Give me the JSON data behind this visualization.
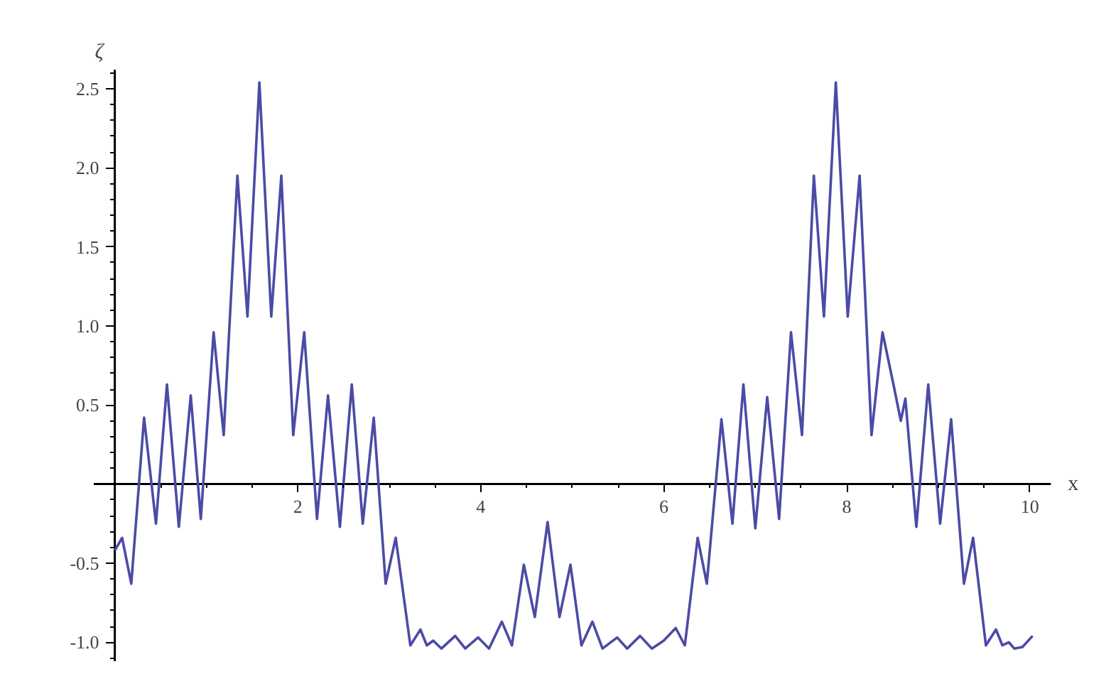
{
  "chart_data": {
    "type": "line",
    "xlabel": "x",
    "ylabel": "ζ",
    "x": [
      0.0,
      0.08,
      0.18,
      0.32,
      0.45,
      0.57,
      0.7,
      0.83,
      0.94,
      1.08,
      1.19,
      1.34,
      1.45,
      1.58,
      1.71,
      1.82,
      1.95,
      2.07,
      2.21,
      2.33,
      2.46,
      2.59,
      2.71,
      2.83,
      2.96,
      3.07,
      3.23,
      3.34,
      3.41,
      3.48,
      3.57,
      3.72,
      3.83,
      3.97,
      4.09,
      4.23,
      4.34,
      4.47,
      4.59,
      4.73,
      4.86,
      4.98,
      5.1,
      5.22,
      5.33,
      5.49,
      5.6,
      5.74,
      5.87,
      6.0,
      6.13,
      6.23,
      6.37,
      6.47,
      6.63,
      6.75,
      6.87,
      7.0,
      7.13,
      7.26,
      7.39,
      7.51,
      7.64,
      7.75,
      7.88,
      8.01,
      8.14,
      8.27,
      8.39,
      8.51,
      8.59,
      8.64,
      8.76,
      8.89,
      9.02,
      9.14,
      9.28,
      9.38,
      9.52,
      9.63,
      9.7,
      9.77,
      9.83,
      9.92,
      10.03
    ],
    "series": [
      {
        "color": "#4b4ba6",
        "values": [
          -0.42,
          -0.34,
          -0.63,
          0.42,
          -0.25,
          0.63,
          -0.27,
          0.56,
          -0.22,
          0.96,
          0.31,
          1.95,
          1.06,
          2.54,
          1.06,
          1.95,
          0.31,
          0.96,
          -0.22,
          0.56,
          -0.27,
          0.63,
          -0.25,
          0.42,
          -0.63,
          -0.34,
          -1.02,
          -0.92,
          -1.02,
          -0.99,
          -1.04,
          -0.96,
          -1.04,
          -0.97,
          -1.04,
          -0.87,
          -1.02,
          -0.51,
          -0.84,
          -0.24,
          -0.84,
          -0.51,
          -1.02,
          -0.87,
          -1.04,
          -0.97,
          -1.04,
          -0.96,
          -1.04,
          -0.99,
          -0.91,
          -1.02,
          -0.34,
          -0.63,
          0.41,
          -0.25,
          0.63,
          -0.28,
          0.55,
          -0.22,
          0.96,
          0.31,
          1.95,
          1.06,
          2.54,
          1.06,
          1.95,
          0.31,
          0.96,
          0.63,
          0.4,
          0.54,
          -0.27,
          0.63,
          -0.25,
          0.41,
          -0.63,
          -0.34,
          -1.02,
          -0.92,
          -1.02,
          -1.0,
          -1.04,
          -1.03,
          -0.96
        ]
      }
    ],
    "xlim": [
      -0.23,
      10.23
    ],
    "ylim": [
      -1.12,
      2.62
    ],
    "xticks": [
      {
        "value": 0.5,
        "label": null
      },
      {
        "value": 1,
        "label": null
      },
      {
        "value": 1.5,
        "label": null
      },
      2,
      {
        "value": 2.5,
        "label": null
      },
      {
        "value": 3,
        "label": null
      },
      {
        "value": 3.5,
        "label": null
      },
      4,
      {
        "value": 4.5,
        "label": null
      },
      {
        "value": 5,
        "label": null
      },
      {
        "value": 5.5,
        "label": null
      },
      6,
      {
        "value": 6.5,
        "label": null
      },
      {
        "value": 7,
        "label": null
      },
      {
        "value": 7.5,
        "label": null
      },
      8,
      {
        "value": 8.5,
        "label": null
      },
      {
        "value": 9,
        "label": null
      },
      {
        "value": 9.5,
        "label": null
      },
      10
    ],
    "yticks": [
      {
        "value": -1.0,
        "label": "-1.0"
      },
      {
        "value": -0.5,
        "label": "-0.5"
      },
      {
        "value": 0.5,
        "label": "0.5"
      },
      {
        "value": 1.0,
        "label": "1.0"
      },
      {
        "value": 1.5,
        "label": "1.5"
      },
      {
        "value": 2.0,
        "label": "2.0"
      },
      {
        "value": 2.5,
        "label": "2.5"
      },
      {
        "value": -1.1,
        "label": null
      },
      {
        "value": -0.9,
        "label": null
      },
      {
        "value": -0.8,
        "label": null
      },
      {
        "value": -0.7,
        "label": null
      },
      {
        "value": -0.6,
        "label": null
      },
      {
        "value": -0.4,
        "label": null
      },
      {
        "value": -0.3,
        "label": null
      },
      {
        "value": -0.2,
        "label": null
      },
      {
        "value": -0.1,
        "label": null
      },
      {
        "value": 0.1,
        "label": null
      },
      {
        "value": 0.2,
        "label": null
      },
      {
        "value": 0.3,
        "label": null
      },
      {
        "value": 0.4,
        "label": null
      },
      {
        "value": 0.6,
        "label": null
      },
      {
        "value": 0.7,
        "label": null
      },
      {
        "value": 0.8,
        "label": null
      },
      {
        "value": 0.9,
        "label": null
      },
      {
        "value": 1.1,
        "label": null
      },
      {
        "value": 1.2,
        "label": null
      },
      {
        "value": 1.3,
        "label": null
      },
      {
        "value": 1.4,
        "label": null
      },
      {
        "value": 1.6,
        "label": null
      },
      {
        "value": 1.7,
        "label": null
      },
      {
        "value": 1.8,
        "label": null
      },
      {
        "value": 1.9,
        "label": null
      },
      {
        "value": 2.1,
        "label": null
      },
      {
        "value": 2.2,
        "label": null
      },
      {
        "value": 2.3,
        "label": null
      },
      {
        "value": 2.4,
        "label": null
      },
      {
        "value": 2.6,
        "label": null
      }
    ],
    "grid": false,
    "line_style": "solid",
    "marker": "none"
  }
}
